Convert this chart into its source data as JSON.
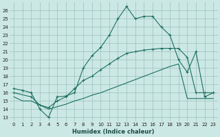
{
  "xlabel": "Humidex (Indice chaleur)",
  "bg_color": "#cce8e4",
  "grid_color": "#99bfba",
  "line_color": "#1a6e60",
  "x_ticks": [
    0,
    1,
    2,
    3,
    4,
    5,
    6,
    7,
    8,
    9,
    10,
    11,
    12,
    13,
    14,
    15,
    16,
    17,
    18,
    19,
    20,
    21,
    22,
    23
  ],
  "y_ticks": [
    13,
    14,
    15,
    16,
    17,
    18,
    19,
    20,
    21,
    22,
    23,
    24,
    25,
    26
  ],
  "ylim": [
    12.5,
    27.0
  ],
  "xlim": [
    -0.5,
    23.5
  ],
  "line1_x": [
    0,
    1,
    2,
    3,
    4,
    5,
    6,
    7,
    8,
    9,
    10,
    11,
    12,
    13,
    14,
    15,
    16,
    17,
    18,
    19,
    20,
    21,
    22,
    23
  ],
  "line1_y": [
    16.5,
    16.3,
    16.0,
    14.0,
    13.0,
    15.5,
    15.6,
    16.0,
    19.0,
    20.5,
    21.5,
    23.0,
    25.0,
    26.5,
    25.0,
    25.3,
    25.3,
    24.0,
    23.0,
    20.0,
    18.5,
    21.0,
    15.5,
    16.0
  ],
  "line2_x": [
    0,
    2,
    3,
    4,
    5,
    6,
    7,
    8,
    9,
    10,
    11,
    12,
    13,
    14,
    15,
    16,
    17,
    18,
    19,
    20,
    21,
    22,
    23
  ],
  "line2_y": [
    16.0,
    15.5,
    14.5,
    14.2,
    15.0,
    15.5,
    16.5,
    17.5,
    18.0,
    18.8,
    19.5,
    20.2,
    20.8,
    21.0,
    21.2,
    21.3,
    21.4,
    21.4,
    21.4,
    20.3,
    16.0,
    16.0,
    16.0
  ],
  "line3_x": [
    0,
    1,
    2,
    3,
    4,
    5,
    6,
    7,
    8,
    9,
    10,
    11,
    12,
    13,
    14,
    15,
    16,
    17,
    18,
    19,
    20,
    21,
    22,
    23
  ],
  "line3_y": [
    15.5,
    15.0,
    15.0,
    14.5,
    14.0,
    14.3,
    14.6,
    15.0,
    15.3,
    15.7,
    16.0,
    16.4,
    16.8,
    17.2,
    17.6,
    18.0,
    18.4,
    18.8,
    19.2,
    19.5,
    15.3,
    15.3,
    15.3,
    15.3
  ],
  "xlabel_fontsize": 6.0,
  "tick_fontsize": 5.0
}
